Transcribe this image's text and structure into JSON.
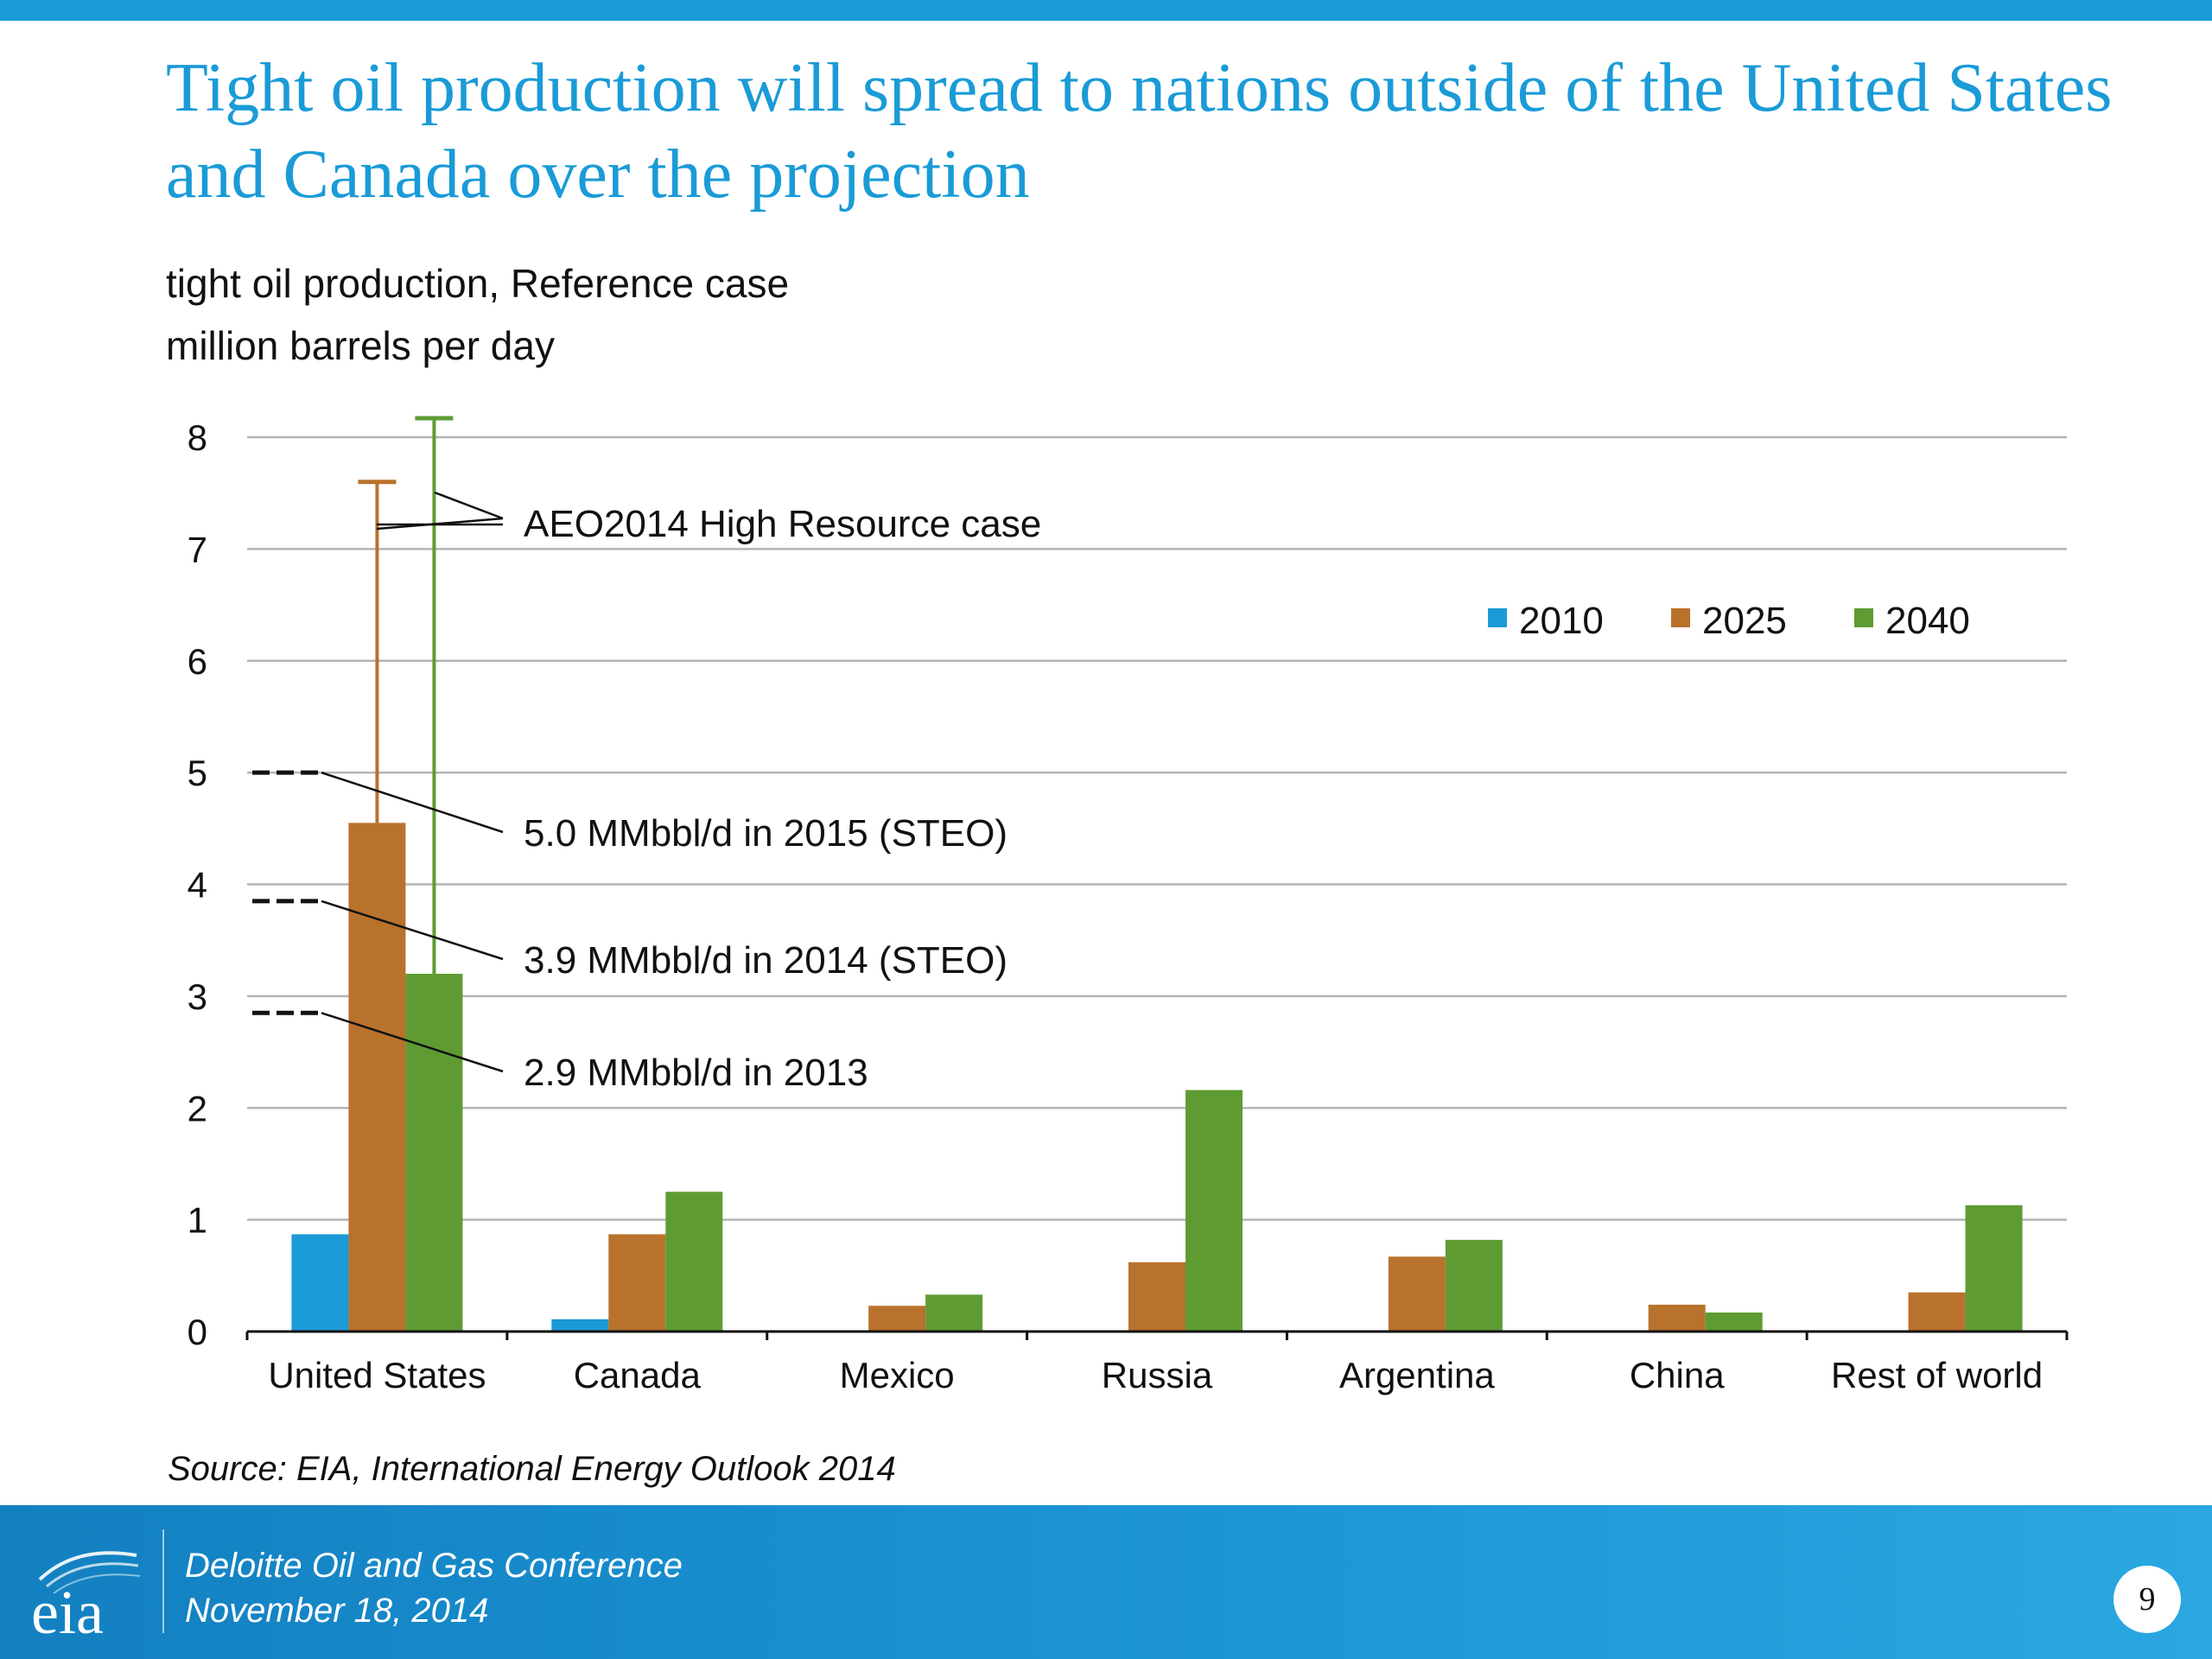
{
  "slide": {
    "title": "Tight oil production will spread to nations outside of the United States and Canada over the projection",
    "subtitle_line1": "tight oil production, Reference case",
    "subtitle_line2": "million barrels per day",
    "source": "Source:  EIA, International Energy Outlook 2014",
    "footer_line1": "Deloitte Oil and Gas Conference",
    "footer_line2": "November 18, 2014",
    "page_number": "9",
    "logo_text": "eia"
  },
  "colors": {
    "title": "#1a9bd7",
    "s2010": "#1a9bd7",
    "s2025": "#b8722c",
    "s2040": "#5e9c33"
  },
  "chart_data": {
    "type": "bar",
    "title": "tight oil production, Reference case",
    "ylabel": "million barrels per day",
    "xlabel": "",
    "ylim": [
      0,
      8
    ],
    "yticks": [
      "0",
      "1",
      "2",
      "3",
      "4",
      "5",
      "6",
      "7",
      "8"
    ],
    "grid": true,
    "legend_position": "top-right",
    "categories": [
      "United States",
      "Canada",
      "Mexico",
      "Russia",
      "Argentina",
      "China",
      "Rest of world"
    ],
    "series": [
      {
        "name": "2010",
        "values": [
          0.87,
          0.11,
          0,
          0,
          0,
          0,
          0
        ]
      },
      {
        "name": "2025",
        "values": [
          4.55,
          0.87,
          0.23,
          0.62,
          0.67,
          0.24,
          0.35
        ]
      },
      {
        "name": "2040",
        "values": [
          3.2,
          1.25,
          0.33,
          2.16,
          0.82,
          0.17,
          1.13
        ]
      }
    ],
    "high_resource_case": {
      "label": "AEO2014 High Resource case",
      "category": "United States",
      "values": {
        "2025": 7.6,
        "2040": 8.17
      }
    },
    "annotations": [
      {
        "label": "5.0 MMbbl/d in 2015 (STEO)",
        "value": 5.0
      },
      {
        "label": "3.9 MMbbl/d in 2014 (STEO)",
        "value": 3.85
      },
      {
        "label": "2.9 MMbbl/d in 2013",
        "value": 2.85
      }
    ]
  }
}
